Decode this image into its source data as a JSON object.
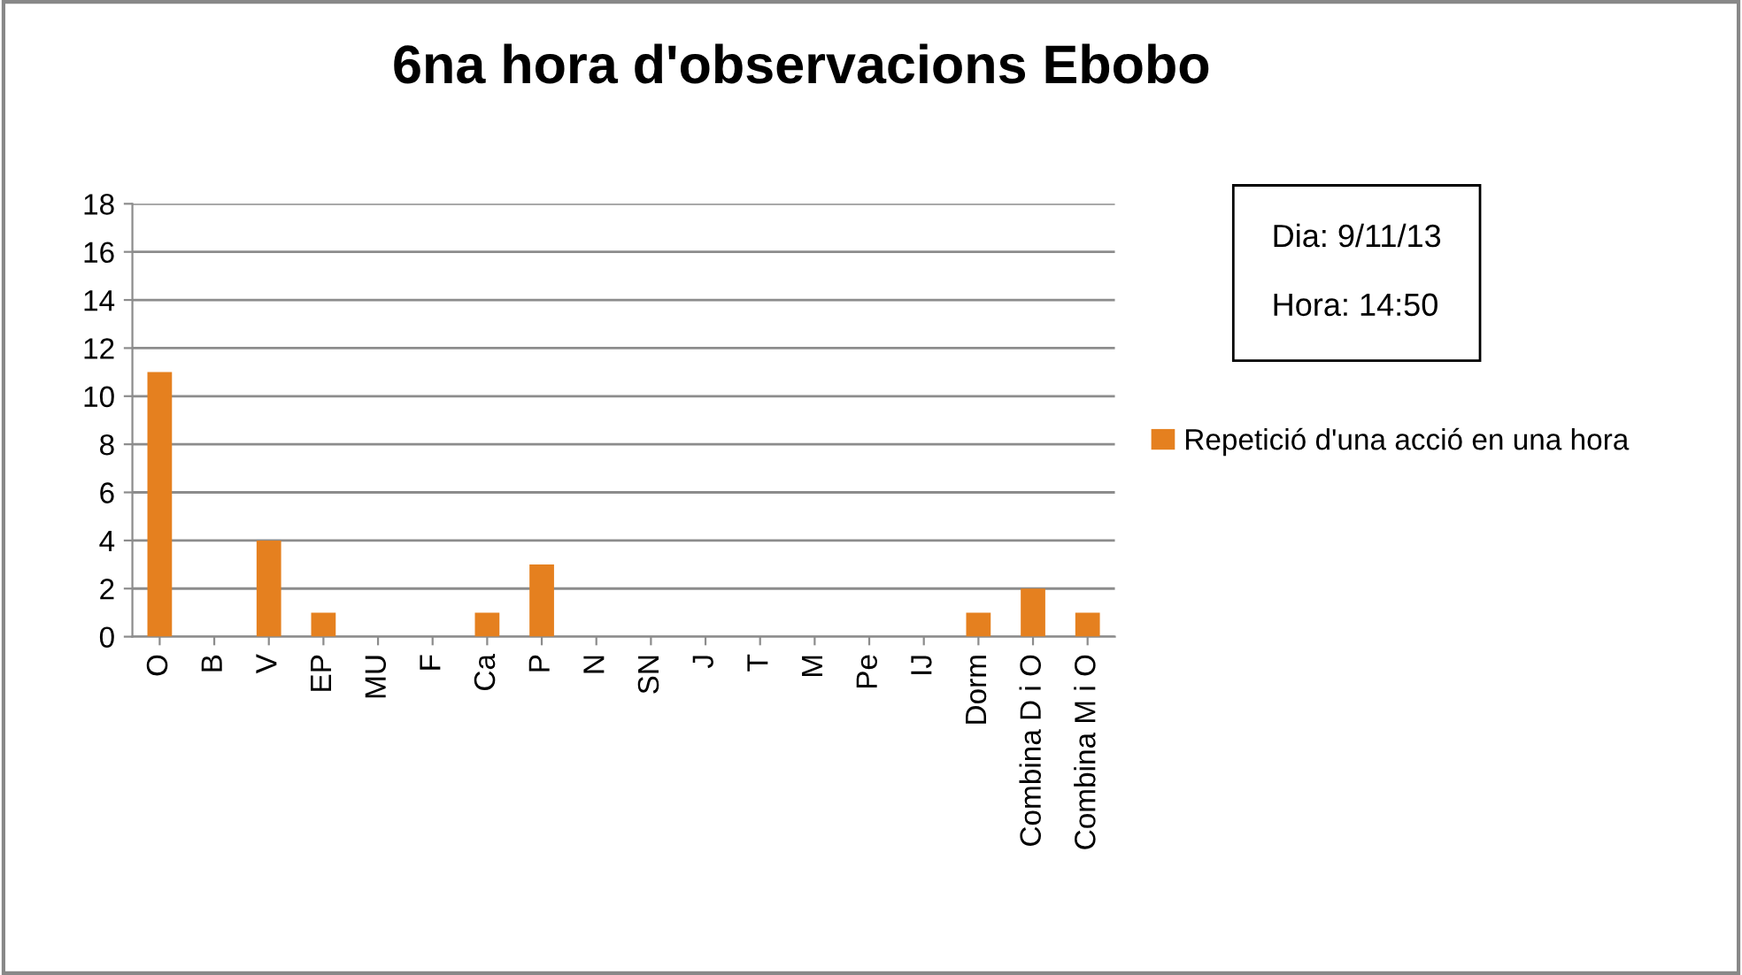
{
  "chart_data": {
    "type": "bar",
    "title": "6na hora d'observacions Ebobo",
    "categories": [
      "O",
      "B",
      "V",
      "EP",
      "MU",
      "F",
      "Ca",
      "P",
      "N",
      "SN",
      "J",
      "T",
      "M",
      "Pe",
      "IJ",
      "Dorm",
      "Combina D i O",
      "Combina M i O"
    ],
    "series": [
      {
        "name": "Repetició d'una acció en una hora",
        "color": "#e5801f",
        "values": [
          11,
          0,
          4,
          1,
          0,
          0,
          1,
          3,
          0,
          0,
          0,
          0,
          0,
          0,
          0,
          1,
          2,
          1
        ]
      }
    ],
    "ylim": [
      0,
      18
    ],
    "yticks": [
      0,
      2,
      4,
      6,
      8,
      10,
      12,
      14,
      16,
      18
    ],
    "grid": "y",
    "legend": "right",
    "annotations": [
      "Dia: 9/11/13",
      "Hora: 14:50"
    ]
  }
}
